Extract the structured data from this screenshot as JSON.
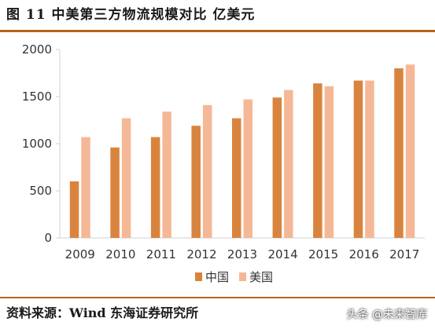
{
  "header": {
    "title": "图 11  中美第三方物流规模对比 亿美元"
  },
  "footer": {
    "source": "资料来源：Wind 东海证券研究所",
    "watermark": "头条 @未来智库"
  },
  "colors": {
    "china": "#d9843e",
    "usa": "#f5b896",
    "rule": "#b5651d",
    "axis": "#d0d0d0"
  },
  "chart_data": {
    "type": "bar",
    "title": "中美第三方物流规模对比",
    "xlabel": "",
    "ylabel": "",
    "ylim": [
      0,
      2000
    ],
    "yticks": [
      0,
      500,
      1000,
      1500,
      2000
    ],
    "grid": false,
    "legend_position": "bottom",
    "categories": [
      "2009",
      "2010",
      "2011",
      "2012",
      "2013",
      "2014",
      "2015",
      "2016",
      "2017"
    ],
    "series": [
      {
        "name": "中国",
        "values": [
          600,
          960,
          1070,
          1190,
          1270,
          1490,
          1640,
          1670,
          1800
        ]
      },
      {
        "name": "美国",
        "values": [
          1070,
          1270,
          1340,
          1410,
          1470,
          1570,
          1610,
          1670,
          1840
        ]
      }
    ]
  }
}
